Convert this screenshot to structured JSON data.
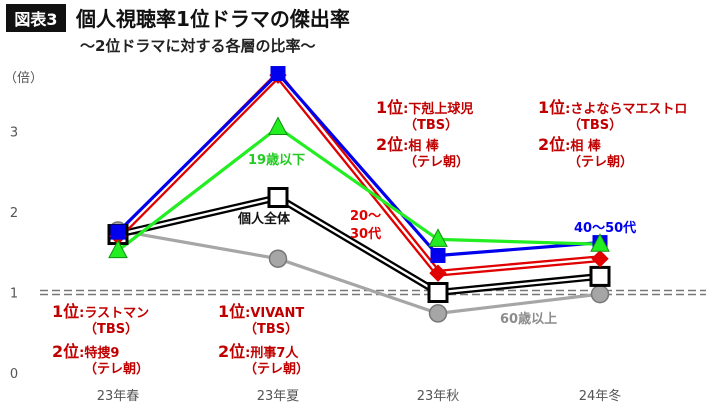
{
  "header": {
    "badge": "図表3",
    "title": "個人視聴率1位ドラマの傑出率",
    "subtitle": "〜2位ドラマに対する各層の比率〜"
  },
  "colors": {
    "background": "#ffffff",
    "badge_bg": "#111111",
    "annotation": "#c00000",
    "baseline": "#777777"
  },
  "annotations": [
    {
      "rank1": "1位",
      "title1": ":ラストマン",
      "net1": "（TBS）",
      "rank2": "2位",
      "title2": ":特捜9",
      "net2": "（テレ朝）"
    },
    {
      "rank1": "1位",
      "title1": ":VIVANT",
      "net1": "（TBS）",
      "rank2": "2位",
      "title2": ":刑事7人",
      "net2": "（テレ朝）"
    },
    {
      "rank1": "1位",
      "title1": ":下剋上球児",
      "net1": "（TBS）",
      "rank2": "2位",
      "title2": ":相 棒",
      "net2": "（テレ朝）"
    },
    {
      "rank1": "1位",
      "title1": ":さよならマエストロ",
      "net1": "（TBS）",
      "rank2": "2位",
      "title2": ":相 棒",
      "net2": "（テレ朝）"
    }
  ],
  "chart_data": {
    "type": "line",
    "categories": [
      "23年春",
      "23年夏",
      "23年秋",
      "24年冬"
    ],
    "ylabel": "（倍）",
    "ylim": [
      0,
      3.7
    ],
    "yticks": [
      "0",
      "1",
      "2",
      "3"
    ],
    "baseline": 1,
    "grid": false,
    "series": [
      {
        "name": "60歳以上",
        "values": [
          1.77,
          1.42,
          0.74,
          0.98
        ],
        "color": "#a6a6a6",
        "marker": "circle",
        "double": false,
        "label_line1": "60歳以上",
        "label_line2": ""
      },
      {
        "name": "個人全体",
        "values": [
          1.72,
          2.18,
          1.0,
          1.2
        ],
        "color": "#000000",
        "marker": "square",
        "double": true,
        "label_line1": "個人全体",
        "label_line2": ""
      },
      {
        "name": "20〜30代",
        "values": [
          1.7,
          3.7,
          1.24,
          1.42
        ],
        "color": "#e00000",
        "marker": "diamond",
        "double": true,
        "label_line1": "20〜",
        "label_line2": "30代"
      },
      {
        "name": "40〜50代",
        "values": [
          1.75,
          3.72,
          1.46,
          1.62
        ],
        "color": "#0000ee",
        "marker": "square-filled",
        "double": false,
        "label_line1": "40〜50代",
        "label_line2": ""
      },
      {
        "name": "19歳以下",
        "values": [
          1.52,
          3.05,
          1.66,
          1.6
        ],
        "color": "#22ee22",
        "marker": "triangle",
        "double": false,
        "label_line1": "19歳以下",
        "label_line2": ""
      }
    ]
  }
}
